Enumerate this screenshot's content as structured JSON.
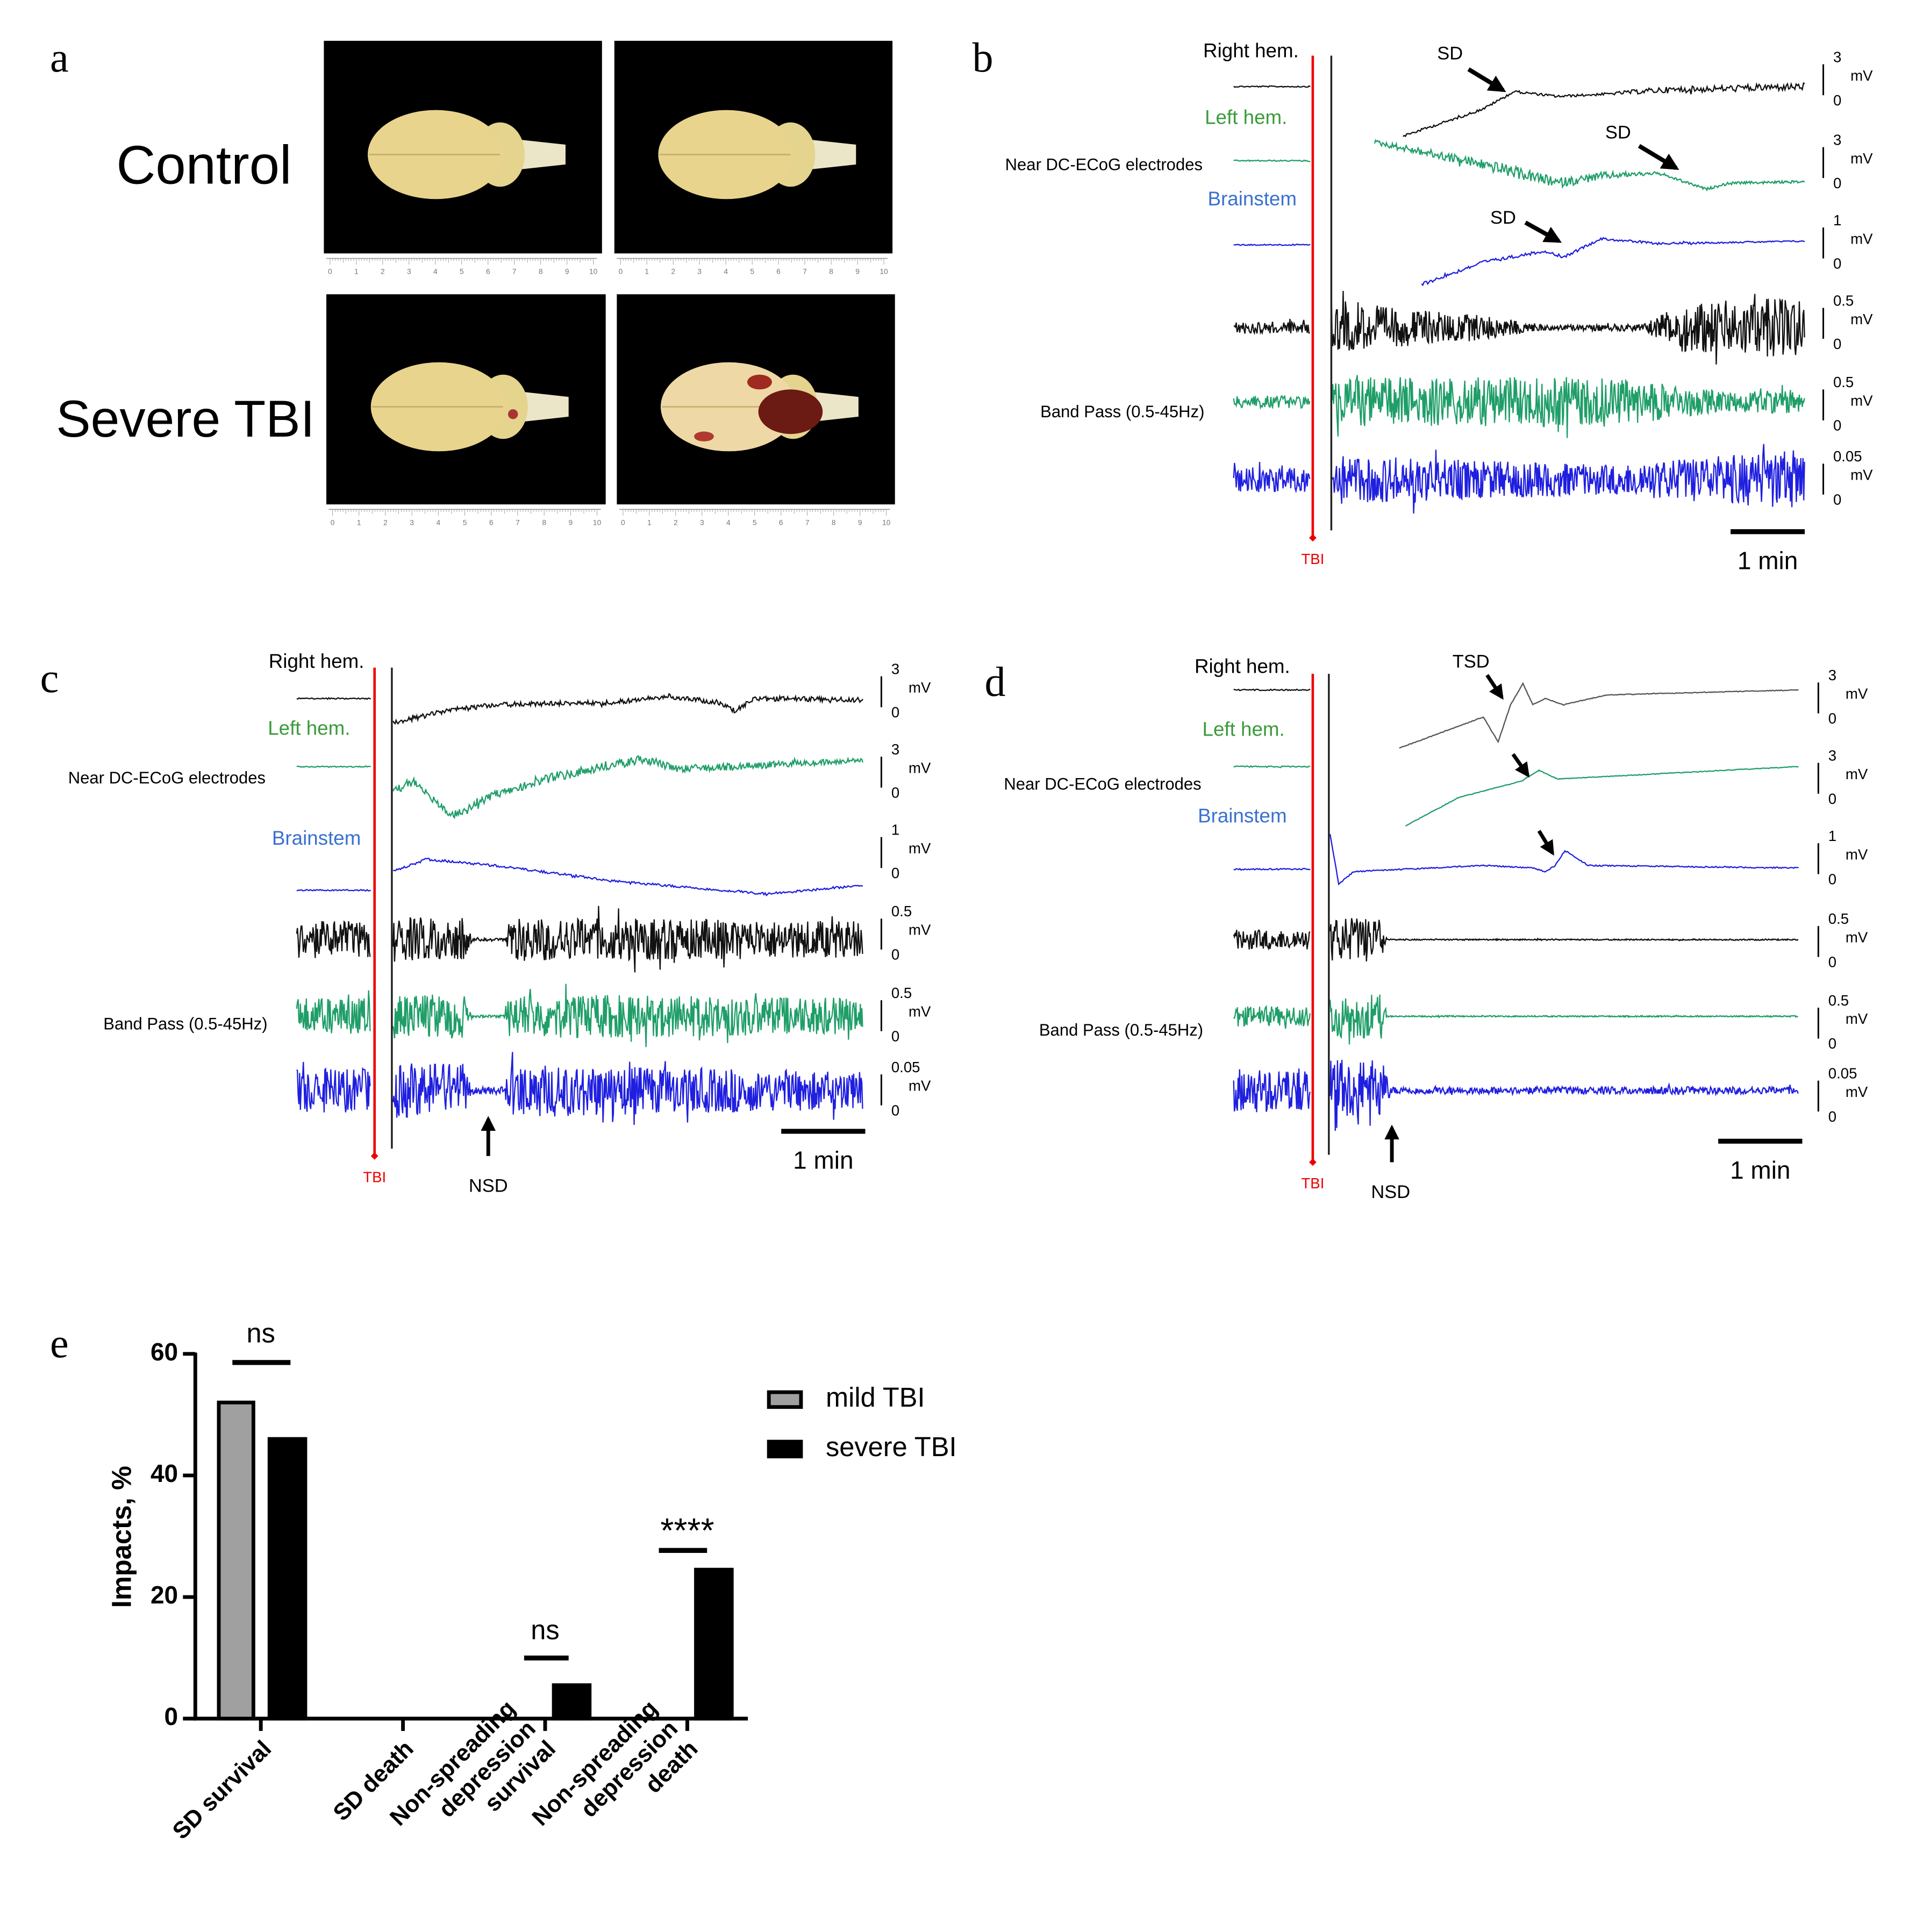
{
  "panels": {
    "a": {
      "label": "a",
      "groups": [
        "Control",
        "Severe TBI"
      ],
      "ruler": [
        "0",
        "1",
        "2",
        "3",
        "4",
        "5",
        "6",
        "7",
        "8",
        "9",
        "10"
      ]
    },
    "b": {
      "label": "b",
      "channels": [
        "Right hem.",
        "Left hem.",
        "Brainstem"
      ],
      "electrodes": "Near DC-ECoG electrodes",
      "filter": "Band Pass (0.5-45Hz)",
      "marker": "TBI",
      "unit": "mV",
      "zero": "0",
      "scales": [
        "3",
        "3",
        "1",
        "0.5",
        "0.5",
        "0.05"
      ],
      "time": "1 min",
      "events": [
        "SD",
        "SD",
        "SD"
      ]
    },
    "c": {
      "label": "c",
      "channels": [
        "Right hem.",
        "Left hem.",
        "Brainstem"
      ],
      "electrodes": "Near DC-ECoG electrodes",
      "filter": "Band Pass (0.5-45Hz)",
      "marker": "TBI",
      "unit": "mV",
      "zero": "0",
      "scales": [
        "3",
        "3",
        "1",
        "0.5",
        "0.5",
        "0.05"
      ],
      "time": "1 min",
      "events": [
        "NSD"
      ]
    },
    "d": {
      "label": "d",
      "channels": [
        "Right hem.",
        "Left hem.",
        "Brainstem"
      ],
      "electrodes": "Near DC-ECoG electrodes",
      "filter": "Band Pass (0.5-45Hz)",
      "marker": "TBI",
      "unit": "mV",
      "zero": "0",
      "scales": [
        "3",
        "3",
        "1",
        "0.5",
        "0.5",
        "0.05"
      ],
      "time": "1 min",
      "events": [
        "TSD",
        "NSD"
      ]
    },
    "e": {
      "label": "e"
    }
  },
  "chart_data": {
    "type": "bar",
    "ylabel": "Impacts, %",
    "categories": [
      [
        "SD survival"
      ],
      [
        "SD death"
      ],
      [
        "Non-spreading",
        "depression",
        "survival"
      ],
      [
        "Non-spreading",
        "depression",
        "death"
      ]
    ],
    "series": [
      {
        "name": "mild TBI",
        "color": "#a0a0a0",
        "values": [
          52,
          0,
          0,
          0
        ]
      },
      {
        "name": "severe TBI",
        "color": "#000000",
        "values": [
          46,
          0,
          5.5,
          24.5
        ]
      }
    ],
    "ylim": [
      0,
      60
    ],
    "yticks": [
      0,
      20,
      40,
      60
    ],
    "annotations": [
      "ns",
      "ns",
      "****"
    ]
  }
}
